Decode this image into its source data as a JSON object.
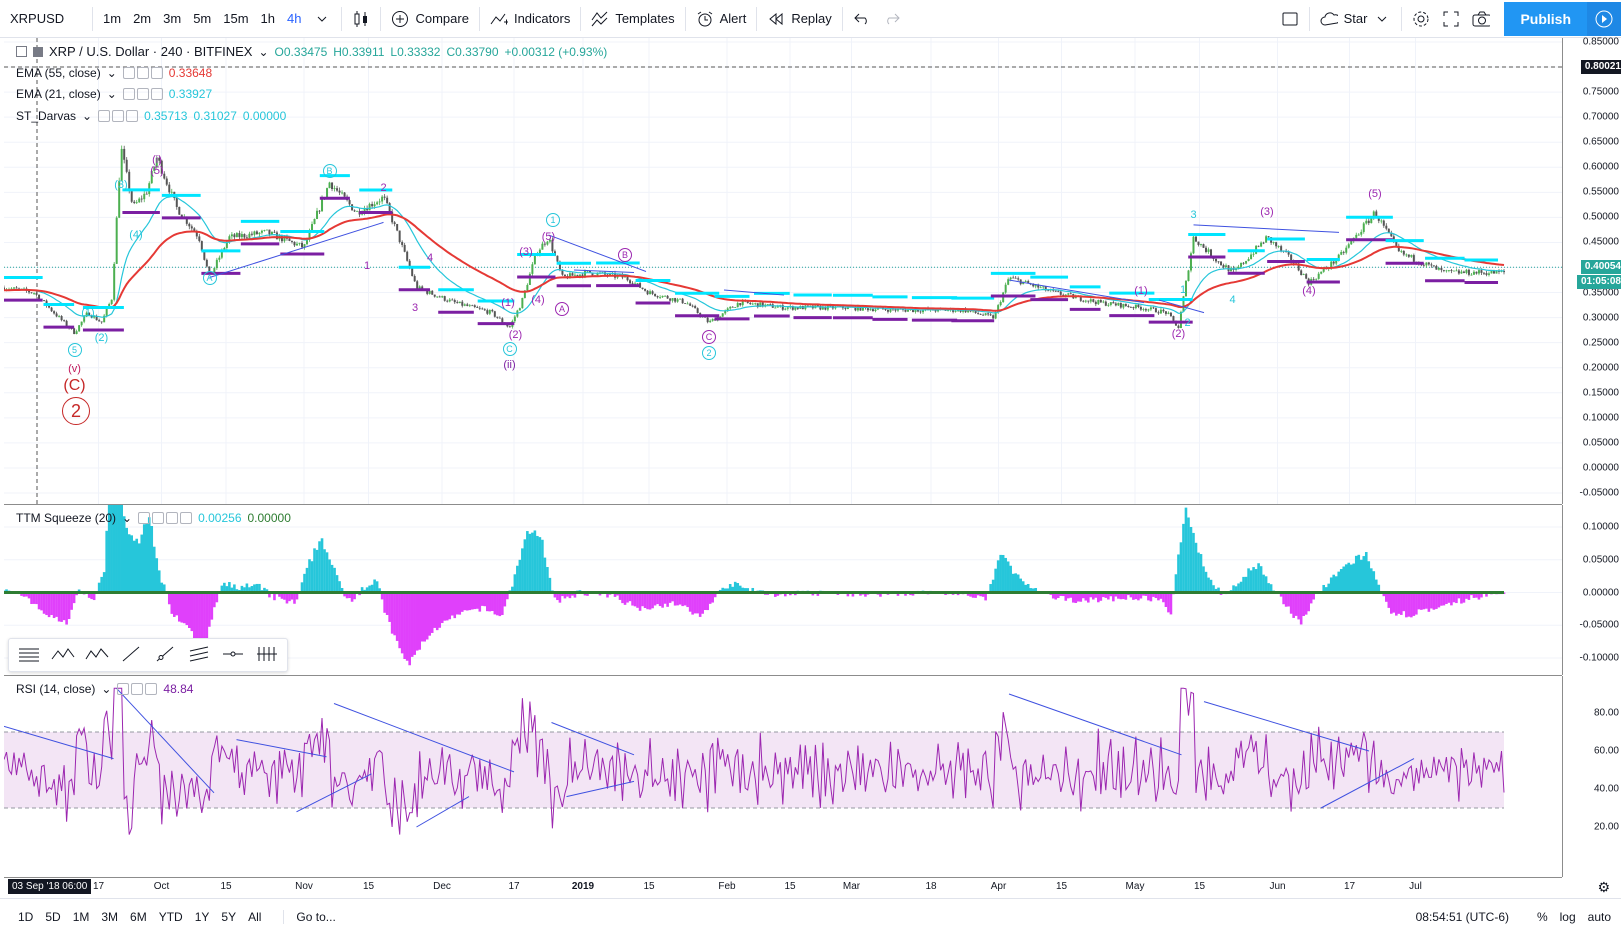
{
  "toolbar": {
    "symbol": "XRPUSD",
    "intervals": [
      "1m",
      "2m",
      "3m",
      "5m",
      "15m",
      "1h",
      "4h"
    ],
    "active_interval": "4h",
    "compare": "Compare",
    "indicators": "Indicators",
    "templates": "Templates",
    "alert": "Alert",
    "replay": "Replay",
    "star": "Star",
    "publish": "Publish"
  },
  "main_pane": {
    "title": "XRP / U.S. Dollar · 240 · BITFINEX",
    "ohlc": {
      "o": "O0.33475",
      "h": "H0.33911",
      "l": "L0.33332",
      "c": "C0.33790",
      "chg": "+0.00312 (+0.93%)"
    },
    "indicators": [
      {
        "name": "EMA (55, close)",
        "value": "0.33648",
        "value2": "",
        "value3": ""
      },
      {
        "name": "EMA (21, close)",
        "value": "0.33927",
        "value2": "",
        "value3": ""
      },
      {
        "name": "ST_Darvas",
        "value": "0.35713",
        "value2": "0.31027",
        "value3": "0.00000"
      }
    ],
    "price_labels": [
      "0.85000",
      "0.80000",
      "0.75000",
      "0.70000",
      "0.65000",
      "0.60000",
      "0.55000",
      "0.50000",
      "0.45000",
      "0.40000",
      "0.35000",
      "0.30000",
      "0.25000",
      "0.20000",
      "0.15000",
      "0.10000",
      "0.05000",
      "0.00000",
      "-0.05000"
    ],
    "crosshair_price": "0.80021",
    "last_price": "0.40054",
    "countdown": "01:05:08",
    "waves": [
      {
        "text": "(i)",
        "price": 0.615,
        "t": 0.102,
        "color": "#9c27b0",
        "style": "plain"
      },
      {
        "text": "(5)",
        "price": 0.592,
        "t": 0.102,
        "color": "#9c27b0",
        "style": "plain"
      },
      {
        "text": "(3)",
        "price": 0.565,
        "t": 0.078,
        "color": "#26c6da",
        "style": "plain"
      },
      {
        "text": "(4)",
        "price": 0.465,
        "t": 0.088,
        "color": "#26c6da",
        "style": "plain"
      },
      {
        "text": "(1)",
        "price": 0.31,
        "t": 0.056,
        "color": "#26c6da",
        "style": "plain"
      },
      {
        "text": "(2)",
        "price": 0.26,
        "t": 0.065,
        "color": "#26c6da",
        "style": "plain"
      },
      {
        "text": "5",
        "price": 0.235,
        "t": 0.047,
        "color": "#26c6da",
        "style": "circle"
      },
      {
        "text": "(v)",
        "price": 0.198,
        "t": 0.047,
        "color": "#c2185b",
        "style": "plain"
      },
      {
        "text": "(C)",
        "price": 0.163,
        "t": 0.047,
        "color": "#c62828",
        "style": "big"
      },
      {
        "text": "2",
        "price": 0.113,
        "t": 0.048,
        "color": "#c62828",
        "style": "bigcircle"
      },
      {
        "text": "B",
        "price": 0.593,
        "t": 0.217,
        "color": "#26c6da",
        "style": "circle"
      },
      {
        "text": "2",
        "price": 0.558,
        "t": 0.253,
        "color": "#9c27b0",
        "style": "plain"
      },
      {
        "text": "A",
        "price": 0.38,
        "t": 0.137,
        "color": "#26c6da",
        "style": "circle"
      },
      {
        "text": "4",
        "price": 0.418,
        "t": 0.284,
        "color": "#9c27b0",
        "style": "plain"
      },
      {
        "text": "1",
        "price": 0.403,
        "t": 0.242,
        "color": "#9c27b0",
        "style": "plain"
      },
      {
        "text": "3",
        "price": 0.32,
        "t": 0.274,
        "color": "#9c27b0",
        "style": "plain"
      },
      {
        "text": "1",
        "price": 0.495,
        "t": 0.366,
        "color": "#26c6da",
        "style": "circle"
      },
      {
        "text": "(3)",
        "price": 0.43,
        "t": 0.348,
        "color": "#9c27b0",
        "style": "plain"
      },
      {
        "text": "(5)",
        "price": 0.46,
        "t": 0.363,
        "color": "#9c27b0",
        "style": "plain"
      },
      {
        "text": "B",
        "price": 0.425,
        "t": 0.414,
        "color": "#9c27b0",
        "style": "circle"
      },
      {
        "text": "(1)",
        "price": 0.33,
        "t": 0.336,
        "color": "#9c27b0",
        "style": "plain"
      },
      {
        "text": "(4)",
        "price": 0.335,
        "t": 0.356,
        "color": "#9c27b0",
        "style": "plain"
      },
      {
        "text": "A",
        "price": 0.318,
        "t": 0.372,
        "color": "#9c27b0",
        "style": "circle"
      },
      {
        "text": "(2)",
        "price": 0.265,
        "t": 0.341,
        "color": "#9c27b0",
        "style": "plain"
      },
      {
        "text": "C",
        "price": 0.238,
        "t": 0.337,
        "color": "#26c6da",
        "style": "circle"
      },
      {
        "text": "(ii)",
        "price": 0.205,
        "t": 0.337,
        "color": "#7b1fa2",
        "style": "plain"
      },
      {
        "text": "C",
        "price": 0.262,
        "t": 0.47,
        "color": "#9c27b0",
        "style": "circle"
      },
      {
        "text": "2",
        "price": 0.23,
        "t": 0.47,
        "color": "#26c6da",
        "style": "circle"
      },
      {
        "text": "(1)",
        "price": 0.354,
        "t": 0.758,
        "color": "#9c27b0",
        "style": "plain"
      },
      {
        "text": "(2)",
        "price": 0.268,
        "t": 0.783,
        "color": "#9c27b0",
        "style": "plain"
      },
      {
        "text": "3",
        "price": 0.505,
        "t": 0.793,
        "color": "#26c6da",
        "style": "plain"
      },
      {
        "text": "1",
        "price": 0.355,
        "t": 0.786,
        "color": "#26c6da",
        "style": "plain"
      },
      {
        "text": "2",
        "price": 0.29,
        "t": 0.789,
        "color": "#26c6da",
        "style": "plain"
      },
      {
        "text": "4",
        "price": 0.335,
        "t": 0.819,
        "color": "#26c6da",
        "style": "plain"
      },
      {
        "text": "(3)",
        "price": 0.51,
        "t": 0.842,
        "color": "#9c27b0",
        "style": "plain"
      },
      {
        "text": "(4)",
        "price": 0.354,
        "t": 0.87,
        "color": "#9c27b0",
        "style": "plain"
      },
      {
        "text": "(5)",
        "price": 0.547,
        "t": 0.914,
        "color": "#9c27b0",
        "style": "plain"
      }
    ]
  },
  "ttm_pane": {
    "name": "TTM Squeeze (20)",
    "value1": "0.00256",
    "value2": "0.00000",
    "price_labels": [
      "0.10000",
      "0.05000",
      "0.00000",
      "-0.05000",
      "-0.10000"
    ]
  },
  "rsi_pane": {
    "name": "RSI (14, close)",
    "value": "48.84",
    "price_labels": [
      "80.00",
      "60.00",
      "40.00",
      "20.00"
    ]
  },
  "time_axis": {
    "cursor_label": "03 Sep '18   06:00",
    "labels": [
      {
        "text": "17",
        "t": 0.063,
        "bold": false
      },
      {
        "text": "Oct",
        "t": 0.105,
        "bold": false
      },
      {
        "text": "15",
        "t": 0.148,
        "bold": false
      },
      {
        "text": "Nov",
        "t": 0.2,
        "bold": false
      },
      {
        "text": "15",
        "t": 0.243,
        "bold": false
      },
      {
        "text": "Dec",
        "t": 0.292,
        "bold": false
      },
      {
        "text": "17",
        "t": 0.34,
        "bold": false
      },
      {
        "text": "2019",
        "t": 0.386,
        "bold": true
      },
      {
        "text": "15",
        "t": 0.43,
        "bold": false
      },
      {
        "text": "Feb",
        "t": 0.482,
        "bold": false
      },
      {
        "text": "15",
        "t": 0.524,
        "bold": false
      },
      {
        "text": "Mar",
        "t": 0.565,
        "bold": false
      },
      {
        "text": "18",
        "t": 0.618,
        "bold": false
      },
      {
        "text": "Apr",
        "t": 0.663,
        "bold": false
      },
      {
        "text": "15",
        "t": 0.705,
        "bold": false
      },
      {
        "text": "May",
        "t": 0.754,
        "bold": false
      },
      {
        "text": "15",
        "t": 0.797,
        "bold": false
      },
      {
        "text": "Jun",
        "t": 0.849,
        "bold": false
      },
      {
        "text": "17",
        "t": 0.897,
        "bold": false
      },
      {
        "text": "Jul",
        "t": 0.941,
        "bold": false
      }
    ]
  },
  "bottombar": {
    "ranges": [
      "1D",
      "5D",
      "1M",
      "3M",
      "6M",
      "YTD",
      "1Y",
      "5Y",
      "All"
    ],
    "goto": "Go to...",
    "clock": "08:54:51 (UTC-6)",
    "percent": "%",
    "log": "log",
    "auto": "auto"
  },
  "colors": {
    "ema55": "#e53935",
    "ema21": "#26c6da",
    "darvas_top": "#00e5ff",
    "darvas_bottom": "#7b1fa2",
    "candles_up": "#4caf50",
    "candles_down": "#555555",
    "trendline": "#3f51e0",
    "rsi_line": "#9c27b0",
    "rsi_band": "#f3e5f5",
    "ttm_pos": "#26c6da",
    "ttm_neg": "#e040fb",
    "ttm_zero": "#2e7d32"
  }
}
